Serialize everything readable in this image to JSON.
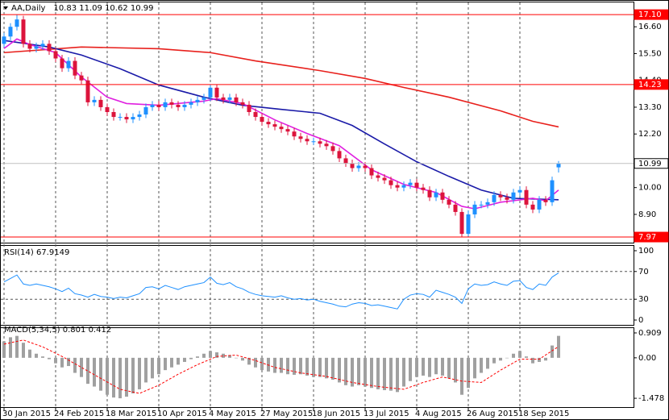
{
  "chart_data": [
    {
      "type": "candlestick",
      "title": "AA,Daily",
      "subtitle": "10.83 11.09 10.62 10.99",
      "categories": [
        "30 Jan 2015",
        null,
        null,
        null,
        null,
        null,
        null,
        null,
        "24 Feb 2015",
        null,
        null,
        null,
        null,
        null,
        null,
        null,
        "18 Mar 2015",
        null,
        null,
        null,
        null,
        null,
        null,
        null,
        "10 Apr 2015",
        null,
        null,
        null,
        null,
        null,
        null,
        null,
        "4 May 2015",
        null,
        null,
        null,
        null,
        null,
        null,
        null,
        "27 May 2015",
        null,
        null,
        null,
        null,
        null,
        null,
        null,
        "18 Jun 2015",
        null,
        null,
        null,
        null,
        null,
        null,
        null,
        "13 Jul 2015",
        null,
        null,
        null,
        null,
        null,
        null,
        null,
        "4 Aug 2015",
        null,
        null,
        null,
        null,
        null,
        null,
        null,
        "26 Aug 2015",
        null,
        null,
        null,
        null,
        null,
        null,
        null,
        "18 Sep 2015",
        null,
        null,
        null,
        null,
        null,
        null
      ],
      "open": [
        15.9,
        16.2,
        16.6,
        16.9,
        15.9,
        15.7,
        15.8,
        15.9,
        15.6,
        15.3,
        14.9,
        15.2,
        14.6,
        14.4,
        13.5,
        13.6,
        13.3,
        13.1,
        12.9,
        12.9,
        12.8,
        12.9,
        13.0,
        13.3,
        13.4,
        13.3,
        13.5,
        13.4,
        13.3,
        13.4,
        13.5,
        13.6,
        13.7,
        14.1,
        13.7,
        13.6,
        13.7,
        13.5,
        13.4,
        13.1,
        12.9,
        12.7,
        12.6,
        12.5,
        12.4,
        12.3,
        12.1,
        12.0,
        11.9,
        11.9,
        11.8,
        11.7,
        11.5,
        11.2,
        11.0,
        10.8,
        10.9,
        10.8,
        10.5,
        10.4,
        10.3,
        10.1,
        10.0,
        10.1,
        10.2,
        10.0,
        9.9,
        9.6,
        9.8,
        9.5,
        9.3,
        9.0,
        8.1,
        8.9,
        9.3,
        9.3,
        9.4,
        9.7,
        9.6,
        9.5,
        9.8,
        9.9,
        9.3,
        9.1,
        9.5,
        9.4,
        10.83
      ],
      "high": [
        16.35,
        16.75,
        17.1,
        17.05,
        16.05,
        15.95,
        16.05,
        16.05,
        15.75,
        15.45,
        15.35,
        15.35,
        14.75,
        14.55,
        13.75,
        13.75,
        13.45,
        13.25,
        13.05,
        13.05,
        13.05,
        13.15,
        13.45,
        13.55,
        13.55,
        13.65,
        13.65,
        13.55,
        13.55,
        13.65,
        13.75,
        13.85,
        14.23,
        14.23,
        13.85,
        13.85,
        13.85,
        13.65,
        13.55,
        13.25,
        13.05,
        12.85,
        12.75,
        12.65,
        12.55,
        12.45,
        12.25,
        12.15,
        12.05,
        12.05,
        11.95,
        11.85,
        11.65,
        11.35,
        11.15,
        11.05,
        11.05,
        10.95,
        10.65,
        10.55,
        10.45,
        10.25,
        10.25,
        10.35,
        10.35,
        10.15,
        10.05,
        9.95,
        9.95,
        9.65,
        9.45,
        9.15,
        9.05,
        9.45,
        9.45,
        9.55,
        9.85,
        9.85,
        9.75,
        9.95,
        10.05,
        10.05,
        9.45,
        9.65,
        9.65,
        10.45,
        11.09
      ],
      "low": [
        15.75,
        16.05,
        16.45,
        15.75,
        15.55,
        15.55,
        15.65,
        15.45,
        15.15,
        14.75,
        14.75,
        14.45,
        14.25,
        13.35,
        13.35,
        13.15,
        12.95,
        12.75,
        12.75,
        12.65,
        12.65,
        12.75,
        12.85,
        13.15,
        13.15,
        13.15,
        13.25,
        13.15,
        13.15,
        13.25,
        13.35,
        13.45,
        13.55,
        13.55,
        13.45,
        13.45,
        13.35,
        13.25,
        12.95,
        12.75,
        12.55,
        12.45,
        12.35,
        12.25,
        12.15,
        11.95,
        11.85,
        11.75,
        11.75,
        11.65,
        11.55,
        11.35,
        11.05,
        10.85,
        10.65,
        10.65,
        10.65,
        10.35,
        10.25,
        10.15,
        9.95,
        9.85,
        9.85,
        9.95,
        9.85,
        9.75,
        9.45,
        9.45,
        9.35,
        9.15,
        8.85,
        7.97,
        8.0,
        8.75,
        9.15,
        9.15,
        9.25,
        9.45,
        9.35,
        9.35,
        9.65,
        9.15,
        8.95,
        8.95,
        9.25,
        9.25,
        10.62
      ],
      "close": [
        16.2,
        16.6,
        16.9,
        15.9,
        15.7,
        15.8,
        15.9,
        15.6,
        15.3,
        14.9,
        15.2,
        14.6,
        14.4,
        13.5,
        13.6,
        13.3,
        13.1,
        12.9,
        12.9,
        12.8,
        12.9,
        13.0,
        13.3,
        13.4,
        13.3,
        13.5,
        13.4,
        13.3,
        13.4,
        13.5,
        13.6,
        13.7,
        14.1,
        13.7,
        13.6,
        13.7,
        13.5,
        13.4,
        13.1,
        12.9,
        12.7,
        12.6,
        12.5,
        12.4,
        12.3,
        12.1,
        12.0,
        11.9,
        11.9,
        11.8,
        11.7,
        11.5,
        11.2,
        11.0,
        10.8,
        10.9,
        10.8,
        10.5,
        10.4,
        10.3,
        10.1,
        10.0,
        10.1,
        10.2,
        10.0,
        9.9,
        9.6,
        9.8,
        9.5,
        9.3,
        9.0,
        8.1,
        8.9,
        9.3,
        9.3,
        9.4,
        9.7,
        9.6,
        9.5,
        9.8,
        9.9,
        9.3,
        9.1,
        9.5,
        9.4,
        10.3,
        10.99
      ],
      "up_color": "#1e90ff",
      "down_color": "#dc143c",
      "series": [
        {
          "color": "#e8201c",
          "x": [
            0,
            12,
            24,
            32,
            39,
            49,
            56,
            62,
            69,
            77,
            82,
            86
          ],
          "values": [
            15.54,
            15.77,
            15.7,
            15.54,
            15.2,
            14.8,
            14.48,
            14.11,
            13.71,
            13.15,
            12.72,
            12.49
          ]
        },
        {
          "color": "#1a1aa8",
          "x": [
            0,
            7,
            12,
            18,
            24,
            31,
            37,
            43,
            49,
            54,
            59,
            64,
            69,
            74,
            79,
            86
          ],
          "values": [
            16.04,
            15.77,
            15.44,
            14.88,
            14.21,
            13.71,
            13.38,
            13.21,
            13.05,
            12.55,
            11.79,
            11.06,
            10.46,
            9.9,
            9.56,
            9.5
          ]
        },
        {
          "color": "#e020e0",
          "x": [
            0,
            2,
            4,
            8,
            12,
            16,
            19,
            24,
            31,
            33,
            37,
            42,
            47,
            52,
            57,
            62,
            67,
            71,
            73,
            77,
            82,
            84,
            86
          ],
          "values": [
            15.71,
            16.1,
            15.87,
            15.54,
            14.54,
            13.71,
            13.45,
            13.38,
            13.55,
            13.65,
            13.45,
            12.78,
            12.22,
            11.72,
            10.73,
            10.13,
            9.8,
            9.23,
            9.13,
            9.4,
            9.56,
            9.46,
            9.9
          ]
        }
      ],
      "levels": [
        {
          "value": 17.1,
          "label": "17.10",
          "color": "#ff0000"
        },
        {
          "value": 14.23,
          "label": "14.23",
          "color": "#ff0000"
        },
        {
          "value": 10.99,
          "label": "10.99",
          "color": "#c0c0c0"
        },
        {
          "value": 7.97,
          "label": "7.97",
          "color": "#ff0000"
        }
      ],
      "ylim": [
        7.74,
        17.6
      ],
      "yticks": [
        {
          "value": 16.6,
          "label": "16.60"
        },
        {
          "value": 15.5,
          "label": "15.50"
        },
        {
          "value": 14.4,
          "label": "14.40"
        },
        {
          "value": 13.3,
          "label": "13.30"
        },
        {
          "value": 12.2,
          "label": "12.20"
        },
        {
          "value": 10.0,
          "label": "10.00"
        },
        {
          "value": 8.9,
          "label": "8.90"
        }
      ]
    },
    {
      "type": "line",
      "title": "RSI(14) 67.9149",
      "color": "#1e90ff",
      "values": [
        55,
        60,
        65,
        52,
        50,
        52,
        50,
        48,
        45,
        41,
        46,
        38,
        36,
        33,
        37,
        34,
        33,
        31,
        33,
        32,
        35,
        38,
        47,
        48,
        45,
        50,
        47,
        44,
        48,
        50,
        52,
        54,
        62,
        53,
        51,
        54,
        48,
        45,
        40,
        37,
        35,
        34,
        33,
        35,
        32,
        30,
        31,
        29,
        30,
        27,
        25,
        23,
        20,
        19,
        23,
        25,
        24,
        21,
        22,
        20,
        18,
        16,
        30,
        36,
        38,
        37,
        33,
        43,
        40,
        37,
        33,
        24,
        45,
        52,
        50,
        51,
        55,
        52,
        50,
        56,
        57,
        47,
        44,
        52,
        50,
        62,
        67.9149
      ],
      "ylim": [
        0,
        100
      ],
      "yticks": [
        100,
        70,
        30,
        0
      ]
    },
    {
      "type": "bar",
      "title": "MACD(5,34,5) 0.801 0.412",
      "color": "#a0a0a0",
      "values": [
        0.6,
        0.75,
        0.8,
        0.55,
        0.3,
        0.15,
        0.05,
        -0.05,
        -0.2,
        -0.35,
        -0.3,
        -0.55,
        -0.7,
        -0.95,
        -1.05,
        -1.2,
        -1.35,
        -1.45,
        -1.478,
        -1.42,
        -1.3,
        -1.15,
        -0.9,
        -0.75,
        -0.6,
        -0.45,
        -0.35,
        -0.25,
        -0.15,
        -0.05,
        0.05,
        0.15,
        0.25,
        0.2,
        0.15,
        0.1,
        0,
        -0.1,
        -0.25,
        -0.35,
        -0.45,
        -0.5,
        -0.55,
        -0.55,
        -0.6,
        -0.62,
        -0.6,
        -0.65,
        -0.7,
        -0.7,
        -0.75,
        -0.8,
        -0.9,
        -1.0,
        -1.05,
        -1.0,
        -1.05,
        -1.1,
        -1.15,
        -1.18,
        -1.2,
        -1.25,
        -1.05,
        -0.85,
        -0.7,
        -0.65,
        -0.7,
        -0.6,
        -0.65,
        -0.75,
        -0.9,
        -1.35,
        -1.1,
        -0.75,
        -0.55,
        -0.4,
        -0.2,
        -0.1,
        0,
        0.15,
        0.25,
        0.05,
        -0.2,
        -0.15,
        -0.1,
        0.45,
        0.801
      ],
      "signal": {
        "color": "#ff0000",
        "x": [
          0,
          3,
          6,
          9,
          12,
          15,
          18,
          21,
          24,
          27,
          30,
          33,
          36,
          39,
          42,
          46,
          50,
          54,
          58,
          62,
          65,
          68,
          71,
          74,
          77,
          80,
          83,
          86
        ],
        "values": [
          0.5,
          0.65,
          0.4,
          0.05,
          -0.35,
          -0.75,
          -1.15,
          -1.3,
          -1.0,
          -0.6,
          -0.25,
          0.05,
          0.1,
          -0.1,
          -0.35,
          -0.55,
          -0.68,
          -0.9,
          -1.05,
          -1.15,
          -0.9,
          -0.7,
          -0.85,
          -0.9,
          -0.45,
          -0.05,
          -0.05,
          0.412
        ]
      },
      "ylim": [
        -1.8,
        1.085
      ],
      "yticks": [
        0.909,
        {
          "value": 0,
          "label": "0.00"
        },
        -1.478
      ]
    }
  ]
}
